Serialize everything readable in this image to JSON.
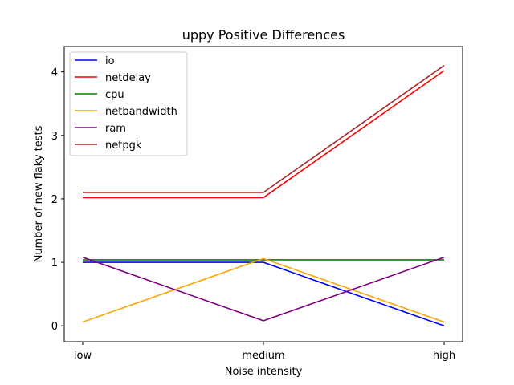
{
  "chart_data": {
    "type": "line",
    "title": "uppy Positive Differences",
    "xlabel": "Noise intensity",
    "ylabel": "Number of new flaky tests",
    "categories": [
      "low",
      "medium",
      "high"
    ],
    "ylim": [
      -0.25,
      4.4
    ],
    "yticks": [
      0,
      1,
      2,
      3,
      4
    ],
    "grid": false,
    "legend_position": "upper-left",
    "series": [
      {
        "name": "io",
        "color": "#0000ff",
        "values": [
          1.0,
          1.0,
          0.0
        ]
      },
      {
        "name": "netdelay",
        "color": "#ff0000",
        "values": [
          2.02,
          2.02,
          4.02
        ]
      },
      {
        "name": "cpu",
        "color": "#008000",
        "values": [
          1.04,
          1.04,
          1.04
        ]
      },
      {
        "name": "netbandwidth",
        "color": "#ffa500",
        "values": [
          0.06,
          1.06,
          0.06
        ]
      },
      {
        "name": "ram",
        "color": "#800080",
        "values": [
          1.08,
          0.08,
          1.08
        ]
      },
      {
        "name": "netpgk",
        "color": "#a52a2a",
        "values": [
          2.1,
          2.1,
          4.1
        ]
      }
    ]
  }
}
